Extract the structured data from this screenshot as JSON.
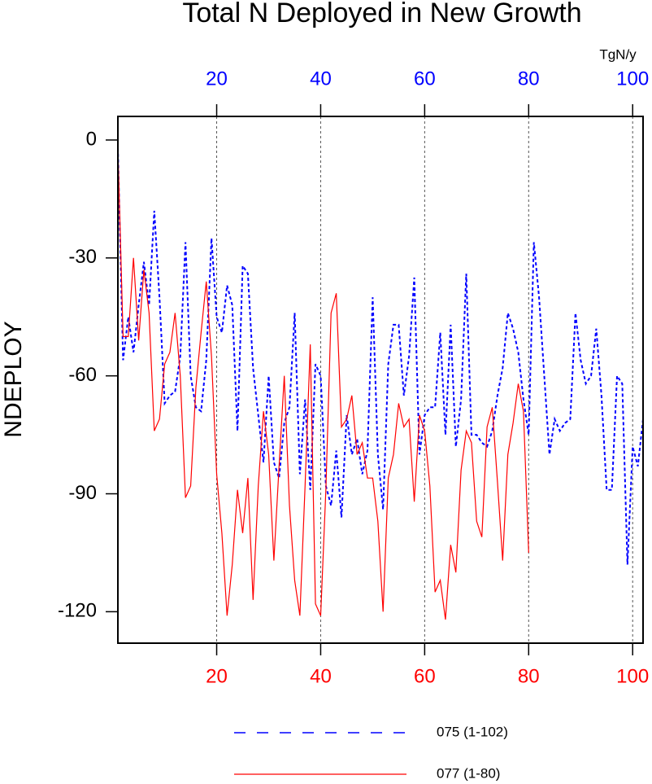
{
  "chart_data": {
    "type": "line",
    "title": "Total N Deployed in New Growth",
    "y_label": "NDEPLOY",
    "units": "TgN/y",
    "x": [
      1,
      2,
      3,
      4,
      5,
      6,
      7,
      8,
      9,
      10,
      11,
      12,
      13,
      14,
      15,
      16,
      17,
      18,
      19,
      20,
      21,
      22,
      23,
      24,
      25,
      26,
      27,
      28,
      29,
      30,
      31,
      32,
      33,
      34,
      35,
      36,
      37,
      38,
      39,
      40,
      41,
      42,
      43,
      44,
      45,
      46,
      47,
      48,
      49,
      50,
      51,
      52,
      53,
      54,
      55,
      56,
      57,
      58,
      59,
      60,
      61,
      62,
      63,
      64,
      65,
      66,
      67,
      68,
      69,
      70,
      71,
      72,
      73,
      74,
      75,
      76,
      77,
      78,
      79,
      80,
      81,
      82,
      83,
      84,
      85,
      86,
      87,
      88,
      89,
      90,
      91,
      92,
      93,
      94,
      95,
      96,
      97,
      98,
      99,
      100,
      101,
      102
    ],
    "series": [
      {
        "name": "075 (1-102)",
        "color": "#0000ff",
        "dash": true,
        "values": [
          -2,
          -56,
          -45,
          -54,
          -42,
          -31,
          -42,
          -18,
          -40,
          -67,
          -65,
          -64,
          -55,
          -26,
          -60,
          -68,
          -69,
          -56,
          -25,
          -45,
          -49,
          -37,
          -42,
          -74,
          -32,
          -34,
          -58,
          -70,
          -82,
          -60,
          -82,
          -86,
          -72,
          -68,
          -44,
          -85,
          -66,
          -89,
          -57,
          -60,
          -88,
          -93,
          -79,
          -96,
          -70,
          -80,
          -76,
          -85,
          -79,
          -40,
          -80,
          -94,
          -57,
          -47,
          -47,
          -65,
          -55,
          -35,
          -80,
          -70,
          -68,
          -68,
          -49,
          -75,
          -47,
          -78,
          -66,
          -34,
          -75,
          -75,
          -77,
          -78,
          -74,
          -65,
          -58,
          -44,
          -48,
          -54,
          -66,
          -75,
          -26,
          -40,
          -60,
          -80,
          -71,
          -74,
          -72,
          -71,
          -44,
          -56,
          -62,
          -60,
          -48,
          -65,
          -89,
          -89,
          -60,
          -62,
          -108,
          -78,
          -83,
          -71
        ]
      },
      {
        "name": "077 (1-80)",
        "color": "#ff0000",
        "dash": false,
        "values": [
          -2,
          -50,
          -50,
          -30,
          -51,
          -33,
          -44,
          -74,
          -71,
          -57,
          -54,
          -44,
          -60,
          -91,
          -88,
          -63,
          -49,
          -36,
          -55,
          -85,
          -100,
          -121,
          -108,
          -89,
          -100,
          -86,
          -117,
          -88,
          -69,
          -80,
          -107,
          -83,
          -60,
          -93,
          -112,
          -121,
          -88,
          -52,
          -118,
          -121,
          -89,
          -44,
          -39,
          -73,
          -71,
          -65,
          -80,
          -77,
          -86,
          -86,
          -97,
          -120,
          -86,
          -80,
          -67,
          -73,
          -71,
          -92,
          -70,
          -74,
          -88,
          -115,
          -112,
          -122,
          -103,
          -110,
          -84,
          -74,
          -77,
          -97,
          -101,
          -73,
          -68,
          -87,
          -107,
          -80,
          -72,
          -62,
          -69,
          -105,
          null,
          null,
          null,
          null,
          null,
          null,
          null,
          null,
          null,
          null,
          null,
          null,
          null,
          null,
          null,
          null,
          null,
          null,
          null,
          null,
          null,
          null
        ]
      }
    ],
    "xlim": [
      1,
      102
    ],
    "xticks": [
      20,
      40,
      60,
      80,
      100
    ],
    "ylim": [
      -128,
      6
    ],
    "yticks": [
      0,
      -30,
      -60,
      -90,
      -120
    ],
    "grid": true
  }
}
